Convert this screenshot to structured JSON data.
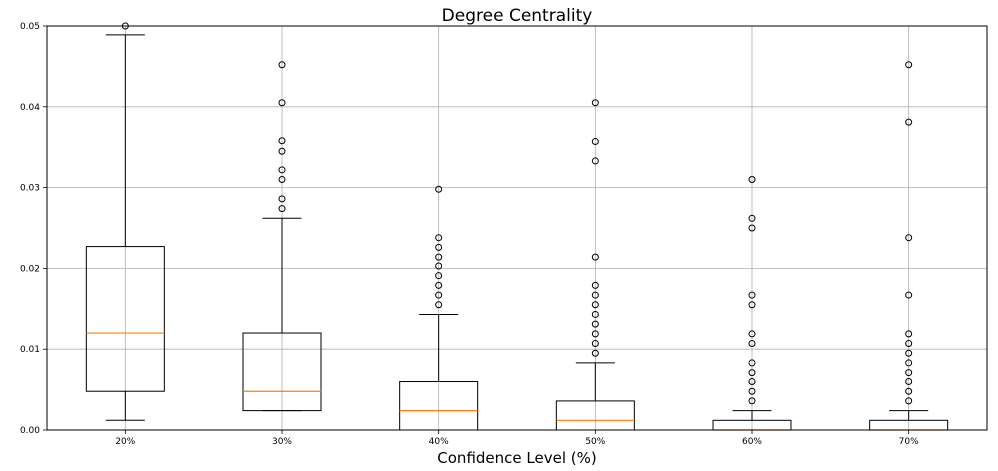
{
  "chart_data": {
    "type": "box",
    "title": "Degree Centrality",
    "xlabel": "Confidence Level (%)",
    "ylabel": "",
    "ylim": [
      0,
      0.05
    ],
    "yticks": [
      "0.00",
      "0.01",
      "0.02",
      "0.03",
      "0.04",
      "0.05"
    ],
    "grid": true,
    "colors": {
      "box": "#000000",
      "median": "#ff7f0e",
      "grid": "#b0b0b0",
      "flier": "#000000"
    },
    "categories": [
      "20%",
      "30%",
      "40%",
      "50%",
      "60%",
      "70%"
    ],
    "boxes": [
      {
        "label": "20%",
        "whisker_low": 0.0012,
        "q1": 0.0048,
        "median": 0.012,
        "q3": 0.0227,
        "whisker_high": 0.0489,
        "outliers": [
          0.05
        ]
      },
      {
        "label": "30%",
        "whisker_low": 0.0024,
        "q1": 0.0024,
        "median": 0.0048,
        "q3": 0.012,
        "whisker_high": 0.0262,
        "outliers": [
          0.0274,
          0.0286,
          0.031,
          0.0322,
          0.0345,
          0.0358,
          0.0405,
          0.0452
        ]
      },
      {
        "label": "40%",
        "whisker_low": 0.0,
        "q1": 0.0,
        "median": 0.0024,
        "q3": 0.006,
        "whisker_high": 0.0143,
        "outliers": [
          0.0155,
          0.0167,
          0.0179,
          0.0191,
          0.0203,
          0.0214,
          0.0226,
          0.0238,
          0.0298
        ]
      },
      {
        "label": "50%",
        "whisker_low": 0.0,
        "q1": 0.0,
        "median": 0.0012,
        "q3": 0.0036,
        "whisker_high": 0.0083,
        "outliers": [
          0.0095,
          0.0107,
          0.0119,
          0.0131,
          0.0143,
          0.0155,
          0.0167,
          0.0179,
          0.0214,
          0.0333,
          0.0357,
          0.0405
        ]
      },
      {
        "label": "60%",
        "whisker_low": 0.0,
        "q1": 0.0,
        "median": 0.0,
        "q3": 0.0012,
        "whisker_high": 0.0024,
        "outliers": [
          0.0036,
          0.0048,
          0.006,
          0.0071,
          0.0083,
          0.0107,
          0.0119,
          0.0155,
          0.0167,
          0.025,
          0.0262,
          0.031
        ]
      },
      {
        "label": "70%",
        "whisker_low": 0.0,
        "q1": 0.0,
        "median": 0.0,
        "q3": 0.0012,
        "whisker_high": 0.0024,
        "outliers": [
          0.0036,
          0.0048,
          0.006,
          0.0071,
          0.0083,
          0.0095,
          0.0107,
          0.0119,
          0.0167,
          0.0238,
          0.0381,
          0.0452
        ]
      }
    ]
  }
}
